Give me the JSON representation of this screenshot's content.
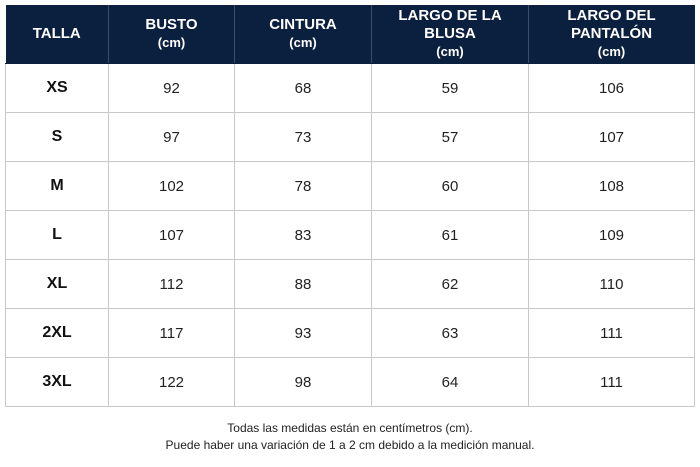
{
  "table": {
    "headers": [
      {
        "title": "TALLA",
        "unit": ""
      },
      {
        "title": "BUSTO",
        "unit": "(cm)"
      },
      {
        "title": "CINTURA",
        "unit": "(cm)"
      },
      {
        "title": "LARGO DE LA BLUSA",
        "unit": "(cm)"
      },
      {
        "title": "LARGO DEL PANTALÓN",
        "unit": "(cm)"
      }
    ],
    "rows": [
      [
        "XS",
        "92",
        "68",
        "59",
        "106"
      ],
      [
        "S",
        "97",
        "73",
        "57",
        "107"
      ],
      [
        "M",
        "102",
        "78",
        "60",
        "108"
      ],
      [
        "L",
        "107",
        "83",
        "61",
        "109"
      ],
      [
        "XL",
        "112",
        "88",
        "62",
        "110"
      ],
      [
        "2XL",
        "117",
        "93",
        "63",
        "111"
      ],
      [
        "3XL",
        "122",
        "98",
        "64",
        "111"
      ]
    ]
  },
  "footnote": {
    "line1": "Todas las medidas están en centímetros (cm).",
    "line2": "Puede haber una variación de 1 a 2 cm debido a la medición manual."
  },
  "colors": {
    "header_bg": "#0b1f3f",
    "header_text": "#ffffff",
    "grid": "#c8c8c8"
  }
}
